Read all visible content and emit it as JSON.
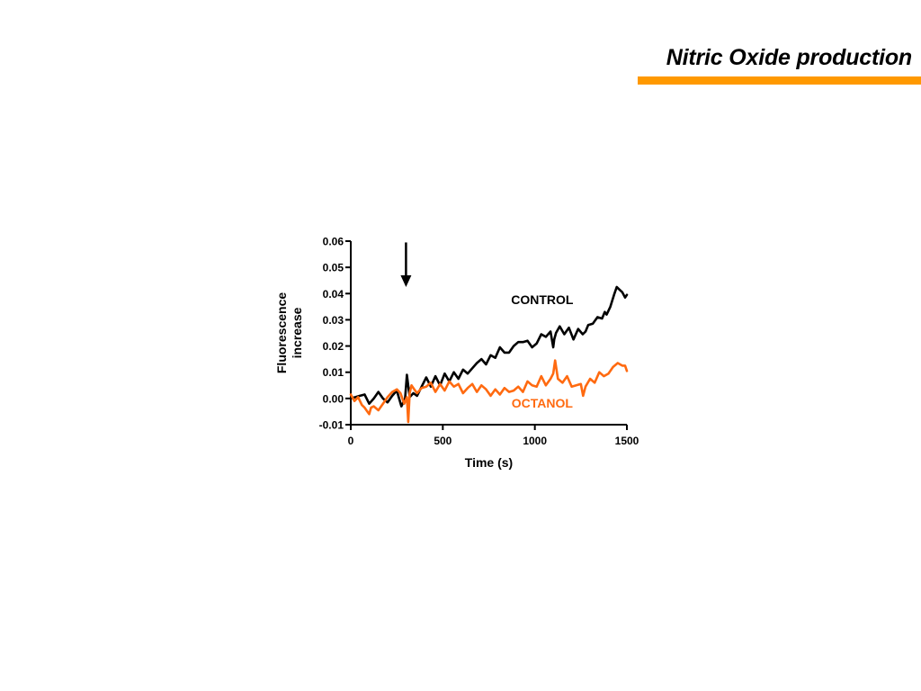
{
  "slide": {
    "title": "Nitric Oxide production",
    "accent_color": "#FF9900"
  },
  "chart_data": {
    "type": "line",
    "title": "",
    "xlabel": "Time (s)",
    "ylabel_lines": [
      "Fluorescence",
      "increase"
    ],
    "xlim": [
      0,
      1500
    ],
    "ylim": [
      -0.01,
      0.06
    ],
    "x_ticks": [
      0,
      500,
      1000,
      1500
    ],
    "x_tick_labels": [
      "0",
      "500",
      "1000",
      "1500"
    ],
    "y_ticks": [
      -0.01,
      0.0,
      0.01,
      0.02,
      0.03,
      0.04,
      0.05,
      0.06
    ],
    "y_tick_labels": [
      "-0.01",
      "0.00",
      "0.01",
      "0.02",
      "0.03",
      "0.04",
      "0.05",
      "0.06"
    ],
    "grid": false,
    "legend": "none",
    "annotations": [
      {
        "type": "arrow",
        "x": 300,
        "y_from": 0.0595,
        "y_to": 0.0425
      }
    ],
    "series": [
      {
        "name": "CONTROL",
        "color": "#000000",
        "label_at": {
          "x": 1040,
          "y": 0.036
        },
        "x": [
          0,
          25,
          50,
          75,
          100,
          125,
          150,
          175,
          200,
          225,
          250,
          275,
          295,
          305,
          320,
          340,
          360,
          385,
          410,
          435,
          460,
          485,
          510,
          535,
          560,
          585,
          610,
          635,
          660,
          685,
          710,
          735,
          760,
          785,
          810,
          835,
          860,
          885,
          910,
          935,
          960,
          985,
          1010,
          1035,
          1060,
          1085,
          1100,
          1105,
          1115,
          1135,
          1160,
          1185,
          1210,
          1235,
          1260,
          1275,
          1290,
          1315,
          1340,
          1365,
          1380,
          1390,
          1410,
          1430,
          1445,
          1460,
          1475,
          1490,
          1500
        ],
        "values": [
          0.0,
          0.0005,
          0.001,
          0.0015,
          -0.002,
          0.0,
          0.0025,
          0.0,
          -0.0015,
          0.001,
          0.003,
          -0.003,
          0.0,
          0.009,
          0.0005,
          0.002,
          0.001,
          0.0045,
          0.008,
          0.0045,
          0.0085,
          0.005,
          0.0095,
          0.0065,
          0.01,
          0.0075,
          0.011,
          0.0095,
          0.0115,
          0.0135,
          0.015,
          0.013,
          0.0165,
          0.0155,
          0.0195,
          0.0175,
          0.0175,
          0.02,
          0.0215,
          0.0215,
          0.022,
          0.0195,
          0.021,
          0.0245,
          0.0235,
          0.0255,
          0.0195,
          0.0225,
          0.025,
          0.0275,
          0.0245,
          0.027,
          0.0225,
          0.0265,
          0.0245,
          0.0255,
          0.028,
          0.0285,
          0.031,
          0.0305,
          0.033,
          0.032,
          0.035,
          0.0395,
          0.0425,
          0.0415,
          0.0405,
          0.0385,
          0.0395
        ]
      },
      {
        "name": "OCTANOL",
        "color": "#FF6A10",
        "label_at": {
          "x": 1040,
          "y": -0.0035
        },
        "x": [
          0,
          20,
          40,
          60,
          75,
          90,
          100,
          110,
          125,
          150,
          175,
          200,
          225,
          250,
          270,
          290,
          305,
          312,
          320,
          330,
          345,
          360,
          385,
          410,
          435,
          460,
          485,
          510,
          535,
          560,
          585,
          610,
          635,
          660,
          685,
          710,
          735,
          760,
          785,
          810,
          835,
          860,
          885,
          910,
          935,
          960,
          985,
          1010,
          1035,
          1060,
          1085,
          1100,
          1110,
          1125,
          1150,
          1175,
          1200,
          1225,
          1250,
          1262,
          1275,
          1300,
          1325,
          1350,
          1375,
          1400,
          1425,
          1450,
          1475,
          1490,
          1500
        ],
        "values": [
          0.0015,
          -0.001,
          0.0005,
          -0.0025,
          -0.0035,
          -0.005,
          -0.006,
          -0.0035,
          -0.003,
          -0.0045,
          -0.002,
          0.0005,
          0.0025,
          0.0035,
          0.002,
          -0.002,
          0.0005,
          -0.009,
          0.002,
          0.005,
          0.0035,
          0.002,
          0.004,
          0.0045,
          0.006,
          0.0025,
          0.0055,
          0.003,
          0.0065,
          0.0045,
          0.0055,
          0.002,
          0.004,
          0.0055,
          0.0025,
          0.005,
          0.0035,
          0.001,
          0.0035,
          0.0015,
          0.004,
          0.0025,
          0.003,
          0.0045,
          0.0025,
          0.0065,
          0.005,
          0.0045,
          0.0085,
          0.005,
          0.0075,
          0.0095,
          0.0145,
          0.0075,
          0.006,
          0.0085,
          0.0045,
          0.005,
          0.0055,
          0.001,
          0.0045,
          0.0075,
          0.006,
          0.01,
          0.0085,
          0.0095,
          0.012,
          0.0135,
          0.0125,
          0.0125,
          0.0105
        ]
      }
    ]
  }
}
